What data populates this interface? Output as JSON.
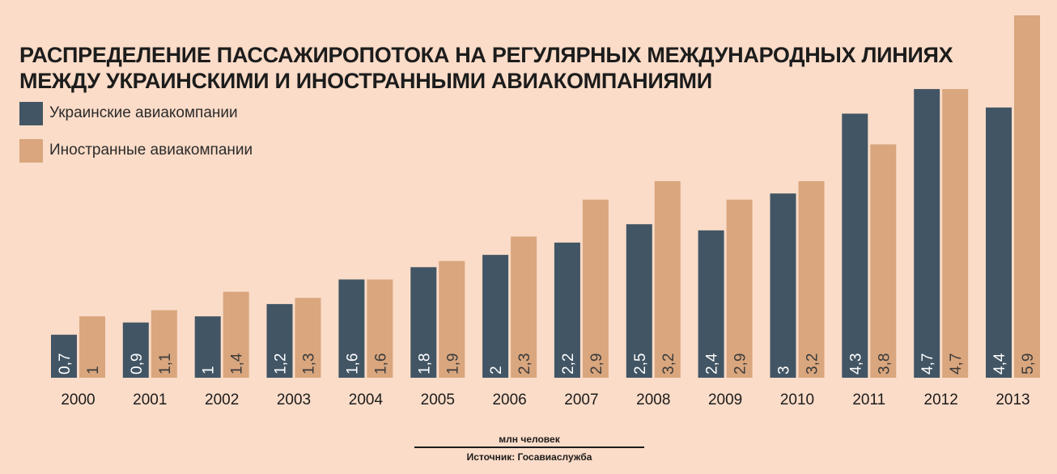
{
  "colors": {
    "background": "#fbdcc8",
    "ukrainian": "#425564",
    "foreign": "#d9a67e",
    "bar_label_light": "#ffffff",
    "bar_label_dark": "#3a3a3a",
    "text": "#2b2b2b"
  },
  "title_lines": [
    "РАСПРЕДЕЛЕНИЕ ПАССАЖИРОПОТОКА НА РЕГУЛЯРНЫХ МЕЖДУНАРОДНЫХ ЛИНИЯХ",
    "МЕЖДУ УКРАИНСКИМИ И ИНОСТРАННЫМИ АВИАКОМПАНИЯМИ"
  ],
  "legend": [
    {
      "label": "Украинские авиакомпании",
      "color_key": "ukrainian"
    },
    {
      "label": "Иностранные авиакомпании",
      "color_key": "foreign"
    }
  ],
  "unit_label": "млн человек",
  "source_label": "Источник: Госавиаслужба",
  "chart_data": {
    "type": "bar",
    "title": "РАСПРЕДЕЛЕНИЕ ПАССАЖИРОПОТОКА НА РЕГУЛЯРНЫХ МЕЖДУНАРОДНЫХ ЛИНИЯХ МЕЖДУ УКРАИНСКИМИ И ИНОСТРАННЫМИ АВИАКОМПАНИЯМИ",
    "categories": [
      "2000",
      "2001",
      "2002",
      "2003",
      "2004",
      "2005",
      "2006",
      "2007",
      "2008",
      "2009",
      "2010",
      "2011",
      "2012",
      "2013"
    ],
    "series": [
      {
        "name": "Украинские авиакомпании",
        "values": [
          0.7,
          0.9,
          1,
          1.2,
          1.6,
          1.8,
          2,
          2.2,
          2.5,
          2.4,
          3,
          4.3,
          4.7,
          4.4
        ],
        "labels": [
          "0,7",
          "0,9",
          "1",
          "1,2",
          "1,6",
          "1,8",
          "2",
          "2,2",
          "2,5",
          "2,4",
          "3",
          "4,3",
          "4,7",
          "4,4"
        ]
      },
      {
        "name": "Иностранные авиакомпании",
        "values": [
          1,
          1.1,
          1.4,
          1.3,
          1.6,
          1.9,
          2.3,
          2.9,
          3.2,
          2.9,
          3.2,
          3.8,
          4.7,
          5.9
        ],
        "labels": [
          "1",
          "1,1",
          "1,4",
          "1,3",
          "1,6",
          "1,9",
          "2,3",
          "2,9",
          "3,2",
          "2,9",
          "3,2",
          "3,8",
          "4,7",
          "5,9"
        ]
      }
    ],
    "ylim": [
      0,
      5.9
    ],
    "unit": "млн человек",
    "grid": false,
    "legend_position": "top-left"
  }
}
